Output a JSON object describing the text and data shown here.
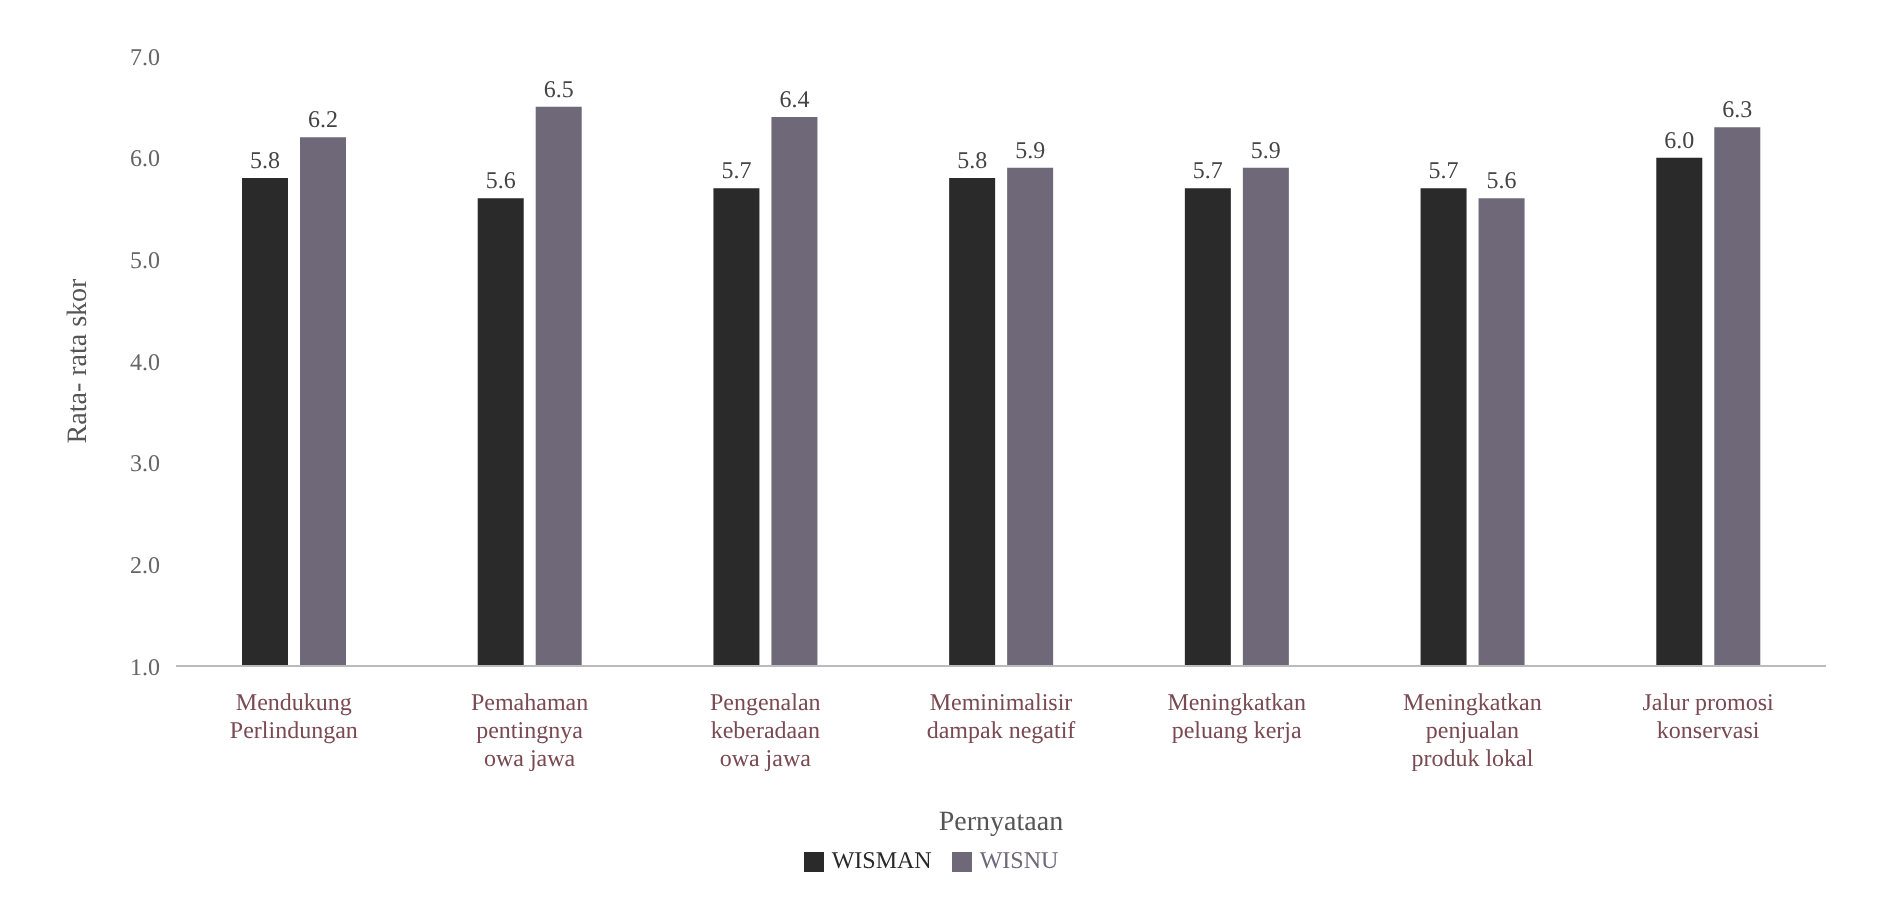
{
  "chart_data": {
    "type": "bar",
    "categories": [
      "Mendukung\nPerlindungan",
      "Pemahaman\npentingnya\nowa jawa",
      "Pengenalan\nkeberadaan\nowa jawa",
      "Meminimalisir\ndampak negatif",
      "Meningkatkan\npeluang kerja",
      "Meningkatkan\npenjualan\nproduk lokal",
      "Jalur promosi\nkonservasi"
    ],
    "series": [
      {
        "name": "WISMAN",
        "color": "#2a2a2a",
        "values": [
          5.8,
          5.6,
          5.7,
          5.8,
          5.7,
          5.7,
          6.0
        ],
        "value_labels": [
          "5.8",
          "5.6",
          "5.7",
          "5.8",
          "5.7",
          "5.7",
          "6.0"
        ]
      },
      {
        "name": "WISNU",
        "color": "#6e6878",
        "values": [
          6.2,
          6.5,
          6.4,
          5.9,
          5.9,
          5.6,
          6.3
        ],
        "value_labels": [
          "6.2",
          "6.5",
          "6.4",
          "5.9",
          "5.9",
          "5.6",
          "6.3"
        ]
      }
    ],
    "xlabel": "Pernyataan",
    "ylabel": "Rata- rata skor",
    "ylim": [
      1,
      7
    ],
    "yticks": [
      {
        "value": 1,
        "label": "1.0"
      },
      {
        "value": 2,
        "label": "2.0"
      },
      {
        "value": 3,
        "label": "3.0"
      },
      {
        "value": 4,
        "label": "4.0"
      },
      {
        "value": 5,
        "label": "5.0"
      },
      {
        "value": 6,
        "label": "6.0"
      },
      {
        "value": 7,
        "label": "7.0"
      }
    ],
    "legend": "bottom",
    "grid": false
  }
}
